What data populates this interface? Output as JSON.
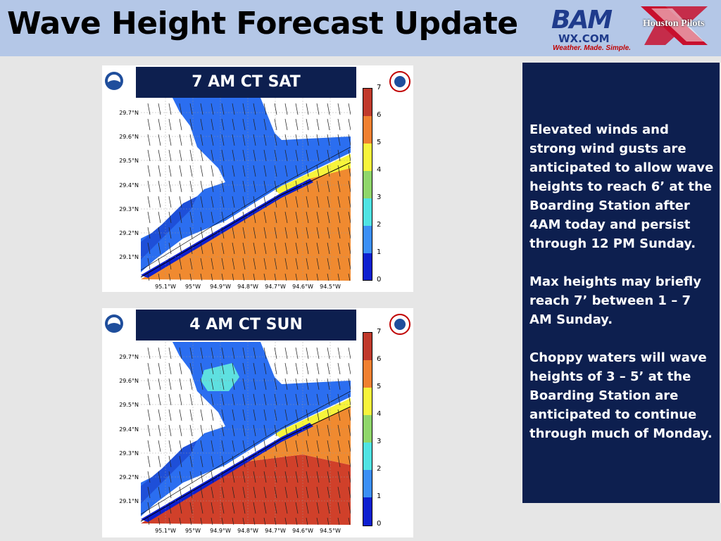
{
  "header": {
    "title": "Wave Height Forecast Update",
    "bam_logo": {
      "name": "BAM",
      "site": "WX.COM",
      "tagline": "Weather. Made. Simple."
    },
    "pilots_logo": {
      "text": "Houston Pilots"
    }
  },
  "panels": [
    {
      "label": "7 AM CT SAT",
      "lat_ticks": [
        "29.7°N",
        "29.6°N",
        "29.5°N",
        "29.4°N",
        "29.3°N",
        "29.2°N",
        "29.1°N"
      ],
      "lon_ticks": [
        "95.1°W",
        "95°W",
        "94.9°W",
        "94.8°W",
        "94.7°W",
        "94.6°W",
        "94.5°W"
      ]
    },
    {
      "label": "4 AM CT SUN",
      "lat_ticks": [
        "29.7°N",
        "29.6°N",
        "29.5°N",
        "29.4°N",
        "29.3°N",
        "29.2°N",
        "29.1°N"
      ],
      "lon_ticks": [
        "95.1°W",
        "95°W",
        "94.9°W",
        "94.8°W",
        "94.7°W",
        "94.6°W",
        "94.5°W"
      ]
    }
  ],
  "colorbar": {
    "ticks": [
      "7",
      "6",
      "5",
      "4",
      "3",
      "2",
      "1",
      "0"
    ],
    "colors": [
      "#c0392b",
      "#f08030",
      "#f7f43b",
      "#8fd66a",
      "#4fe3e3",
      "#3b8ff5",
      "#1e5fe0",
      "#0d1fd0"
    ]
  },
  "colors": {
    "sea_orange": "#f08a30",
    "sea_red": "#d0402a",
    "sea_yellow": "#f7f43b",
    "bay_blue": "#2b6ef0",
    "dark_blue": "#1e4fd8",
    "cyan": "#5ee0e0",
    "navy": "#0d1f4f"
  },
  "summary": [
    "Elevated winds and strong wind gusts are anticipated to allow wave heights to reach 6’ at the Boarding Station after 4AM today and persist through 12 PM Sunday.",
    "Max heights may briefly reach 7’ between 1 – 7 AM Sunday.",
    "Choppy waters will wave heights of 3 – 5’ at the Boarding Station are anticipated to continue through much of Monday."
  ]
}
